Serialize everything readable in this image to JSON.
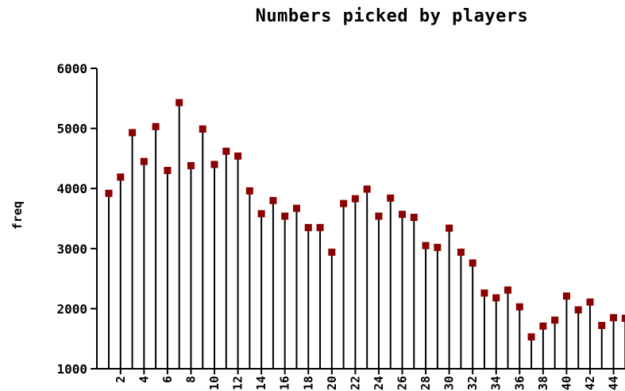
{
  "chart_data": {
    "type": "scatter",
    "title": "Numbers picked by players",
    "xlabel": "",
    "ylabel": "freq",
    "ylim": [
      1000,
      6000
    ],
    "yticks": [
      "1000",
      "2000",
      "3000",
      "4000",
      "5000",
      "6000"
    ],
    "xticks": [
      "2",
      "4",
      "6",
      "8",
      "10",
      "12",
      "14",
      "16",
      "18",
      "20",
      "22",
      "24",
      "26",
      "28",
      "30",
      "32",
      "34",
      "36",
      "38",
      "40",
      "42",
      "44"
    ],
    "marker_color": "#8b0000",
    "grid": false,
    "x": [
      1,
      2,
      3,
      4,
      5,
      6,
      7,
      8,
      9,
      10,
      11,
      12,
      13,
      14,
      15,
      16,
      17,
      18,
      19,
      20,
      21,
      22,
      23,
      24,
      25,
      26,
      27,
      28,
      29,
      30,
      31,
      32,
      33,
      34,
      35,
      36,
      37,
      38,
      39,
      40,
      41,
      42,
      43,
      44,
      45
    ],
    "y": [
      3920,
      4190,
      4930,
      4450,
      5030,
      4300,
      5430,
      4380,
      4990,
      4400,
      4620,
      4540,
      3960,
      3580,
      3800,
      3540,
      3670,
      3350,
      3350,
      2940,
      3750,
      3830,
      3990,
      3540,
      3840,
      3570,
      3520,
      3050,
      3020,
      3340,
      2940,
      2760,
      2260,
      2180,
      2310,
      2030,
      1530,
      1710,
      1810,
      2210,
      1980,
      2110,
      1720,
      1850,
      1840
    ]
  }
}
